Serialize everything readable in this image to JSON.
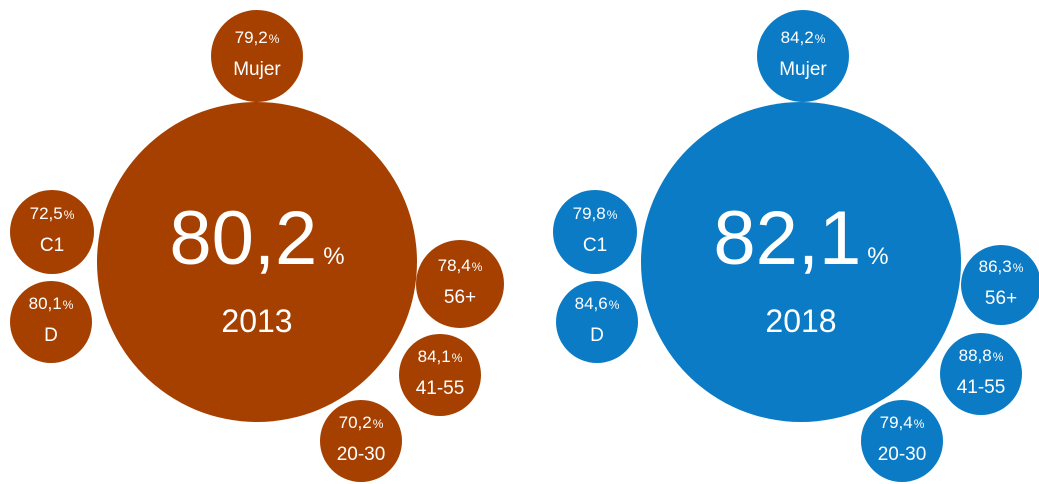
{
  "chart_data": [
    {
      "type": "bubble",
      "color": "#A64000",
      "main": {
        "value": "80,2",
        "unit": "%",
        "label": "2013"
      },
      "segments": [
        {
          "key": "mujer",
          "value": "79,2",
          "unit": "%",
          "label": "Mujer"
        },
        {
          "key": "c1",
          "value": "72,5",
          "unit": "%",
          "label": "C1"
        },
        {
          "key": "d",
          "value": "80,1",
          "unit": "%",
          "label": "D"
        },
        {
          "key": "56plus",
          "value": "78,4",
          "unit": "%",
          "label": "56+"
        },
        {
          "key": "41-55",
          "value": "84,1",
          "unit": "%",
          "label": "41-55"
        },
        {
          "key": "20-30",
          "value": "70,2",
          "unit": "%",
          "label": "20-30"
        }
      ]
    },
    {
      "type": "bubble",
      "color": "#0A7BC4",
      "main": {
        "value": "82,1",
        "unit": "%",
        "label": "2018"
      },
      "segments": [
        {
          "key": "mujer",
          "value": "84,2",
          "unit": "%",
          "label": "Mujer"
        },
        {
          "key": "c1",
          "value": "79,8",
          "unit": "%",
          "label": "C1"
        },
        {
          "key": "d",
          "value": "84,6",
          "unit": "%",
          "label": "D"
        },
        {
          "key": "56plus",
          "value": "86,3",
          "unit": "%",
          "label": "56+"
        },
        {
          "key": "41-55",
          "value": "88,8",
          "unit": "%",
          "label": "41-55"
        },
        {
          "key": "20-30",
          "value": "79,4",
          "unit": "%",
          "label": "20-30"
        }
      ]
    }
  ]
}
